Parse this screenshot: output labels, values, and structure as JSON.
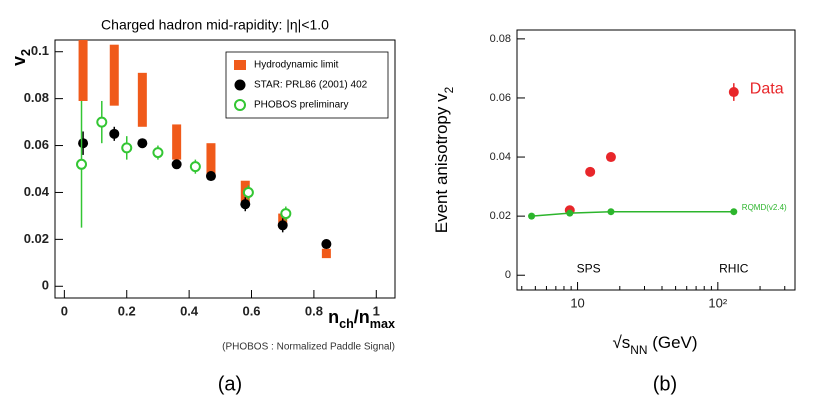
{
  "chart_data": [
    {
      "type": "scatter",
      "title": "Charged hadron   mid-rapidity: |η|<1.0",
      "xlabel": [
        "n",
        "ch",
        "/n",
        "max"
      ],
      "ylabel": [
        "v",
        "2"
      ],
      "footnote": "(PHOBOS : Normalized Paddle Signal)",
      "caption": "(a)",
      "xlim": [
        -0.03,
        1.06
      ],
      "ylim": [
        -0.005,
        0.105
      ],
      "xticks": [
        0,
        0.2,
        0.4,
        0.6,
        0.8,
        1
      ],
      "yticks": [
        0,
        0.02,
        0.04,
        0.06,
        0.08,
        0.1
      ],
      "legend": "upper right",
      "series": [
        {
          "name": "Hydrodynamic limit",
          "color": "#f05a1a",
          "marker": "range",
          "x": [
            0.06,
            0.16,
            0.25,
            0.36,
            0.47,
            0.58,
            0.7,
            0.84
          ],
          "low": [
            0.079,
            0.077,
            0.068,
            0.054,
            0.047,
            0.036,
            0.025,
            0.012
          ],
          "high": [
            0.105,
            0.103,
            0.091,
            0.069,
            0.061,
            0.045,
            0.031,
            0.016
          ]
        },
        {
          "name": "STAR: PRL86 (2001) 402",
          "color": "#000000",
          "marker": "filled-circle",
          "x": [
            0.06,
            0.16,
            0.25,
            0.36,
            0.47,
            0.58,
            0.7,
            0.84
          ],
          "values": [
            0.061,
            0.065,
            0.061,
            0.052,
            0.047,
            0.035,
            0.026,
            0.018
          ],
          "errors": [
            0.005,
            0.003,
            0.002,
            0.002,
            0.002,
            0.003,
            0.003,
            0.002
          ]
        },
        {
          "name": "PHOBOS preliminary",
          "color": "#33c633",
          "marker": "open-circle",
          "x": [
            0.055,
            0.12,
            0.2,
            0.3,
            0.42,
            0.59,
            0.71
          ],
          "values": [
            0.052,
            0.07,
            0.059,
            0.057,
            0.051,
            0.04,
            0.031
          ],
          "errors": [
            0.027,
            0.009,
            0.005,
            0.003,
            0.003,
            0.003,
            0.003
          ]
        }
      ]
    },
    {
      "type": "scatter",
      "xlabel": [
        "√s",
        "NN",
        " (GeV)"
      ],
      "ylabel": [
        "Event anisotropy v",
        "2"
      ],
      "caption": "(b)",
      "xlog": true,
      "xlim": [
        3.7,
        355
      ],
      "ylim": [
        -0.005,
        0.083
      ],
      "xticks": [
        10,
        {
          "value": 100,
          "label": "10²"
        }
      ],
      "yticks": [
        0,
        0.02,
        0.04,
        0.06,
        0.08
      ],
      "annotations": [
        "SPS",
        "RHIC"
      ],
      "series": [
        {
          "name": "Data",
          "color": "#e8262a",
          "marker": "filled-circle",
          "x": [
            8.8,
            12.3,
            17.3,
            130
          ],
          "values": [
            0.022,
            0.035,
            0.04,
            0.062
          ],
          "errors": [
            0.001,
            0.001,
            0.001,
            0.003
          ]
        },
        {
          "name": "RQMD(v2.4)",
          "color": "#2cb52c",
          "marker": "small-circle",
          "line": true,
          "x": [
            4.7,
            8.8,
            17.3,
            130
          ],
          "values": [
            0.02,
            0.021,
            0.0215,
            0.0215
          ]
        }
      ]
    }
  ]
}
